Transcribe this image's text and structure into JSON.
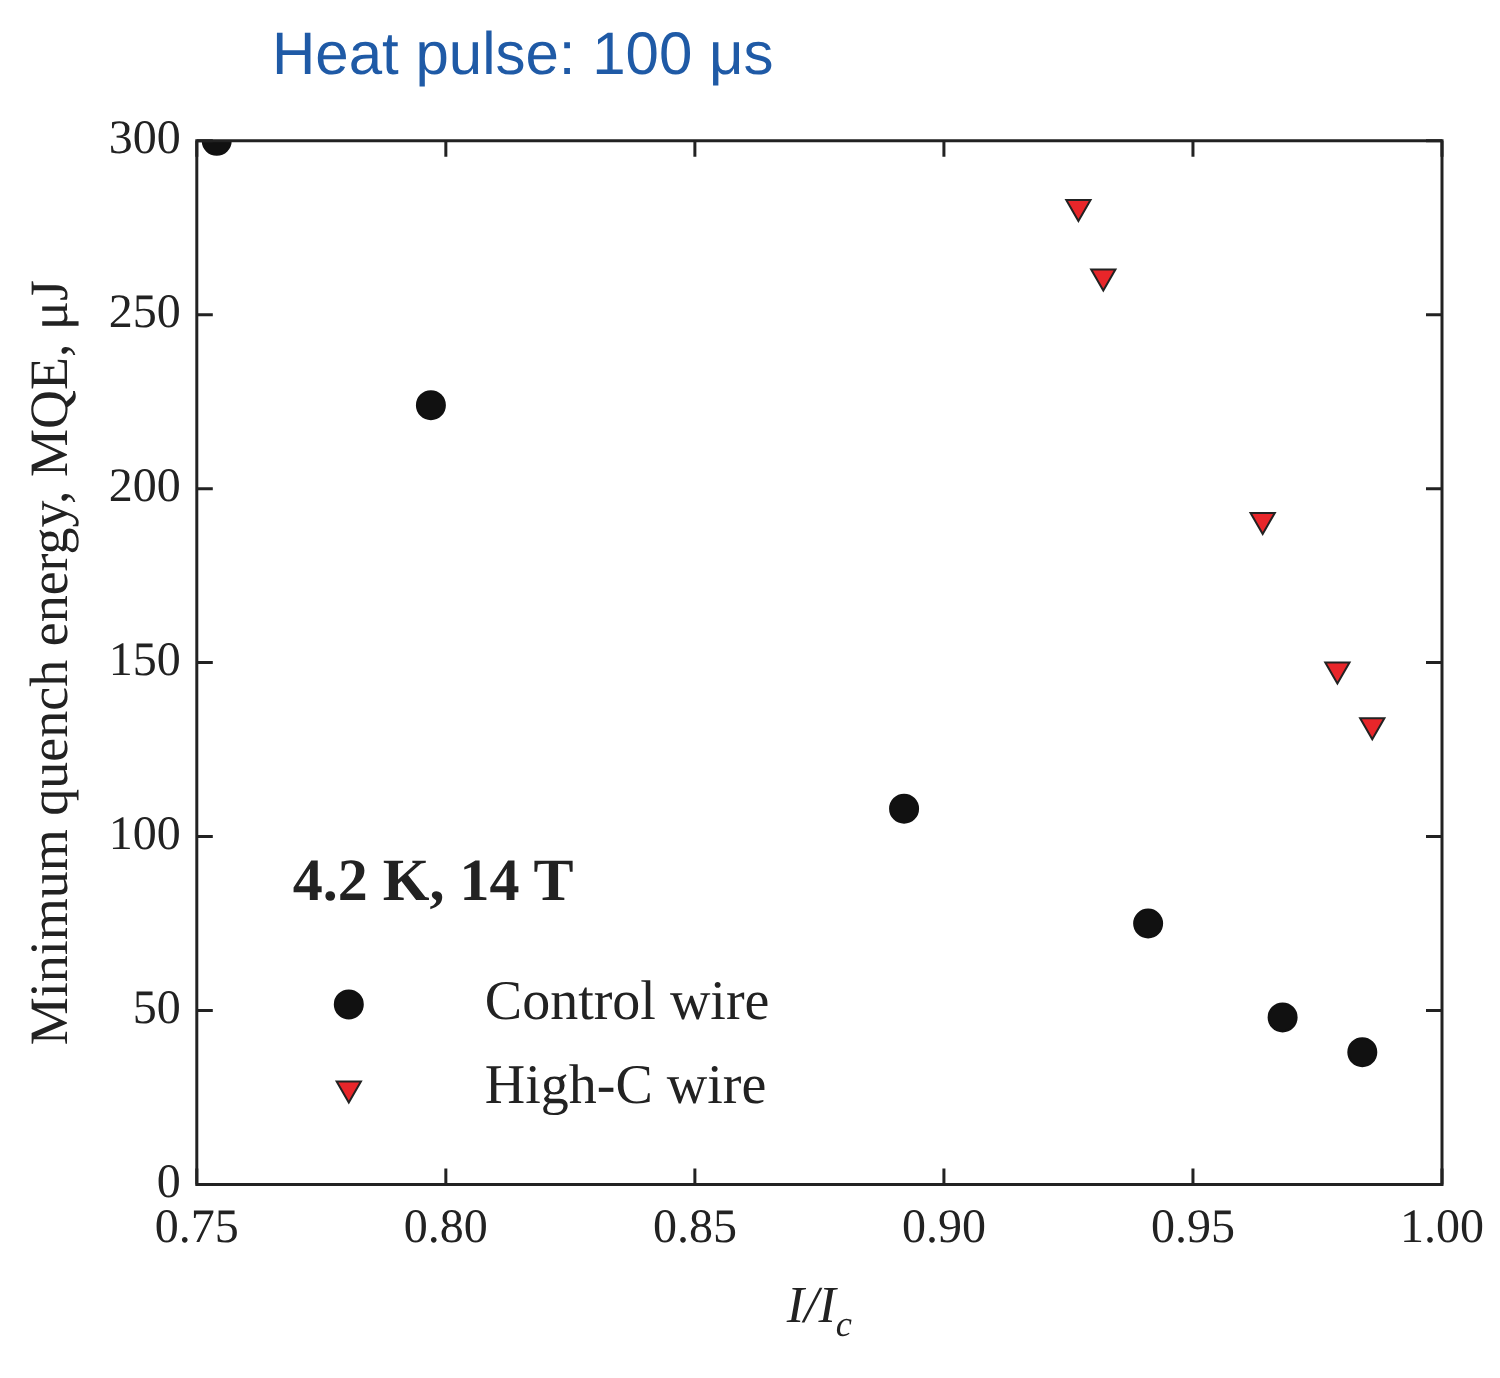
{
  "chart_data": {
    "type": "scatter",
    "title": "Heat pulse: 100 μs",
    "xlabel": "I/I$_{c}$",
    "ylabel": "Minimum quench energy, MQE, μJ",
    "legend_title": "4.2 K, 14 T",
    "legend": "bottom left",
    "grid": false,
    "xlim": [
      0.75,
      1.0
    ],
    "xticks": [
      {
        "value": 0.75,
        "label": "0.75"
      },
      {
        "value": 0.8,
        "label": "0.80"
      },
      {
        "value": 0.85,
        "label": "0.85"
      },
      {
        "value": 0.9,
        "label": "0.90"
      },
      {
        "value": 0.95,
        "label": "0.95"
      },
      {
        "value": 1.0,
        "label": "1.00"
      }
    ],
    "ylim": [
      0,
      300
    ],
    "yticks": [
      0,
      50,
      100,
      150,
      200,
      250,
      300
    ],
    "series": [
      {
        "name": "Control wire",
        "color": "#111111",
        "marker": "circle",
        "x": [
          0.754,
          0.797,
          0.892,
          0.941,
          0.968,
          0.984
        ],
        "values": [
          300,
          224,
          108,
          75,
          48,
          38
        ]
      },
      {
        "name": "High-C wire",
        "color": "#e8262a",
        "marker": "triangle",
        "x": [
          0.927,
          0.932,
          0.964,
          0.979,
          0.986
        ],
        "values": [
          281,
          261,
          191,
          148,
          132
        ]
      }
    ]
  }
}
